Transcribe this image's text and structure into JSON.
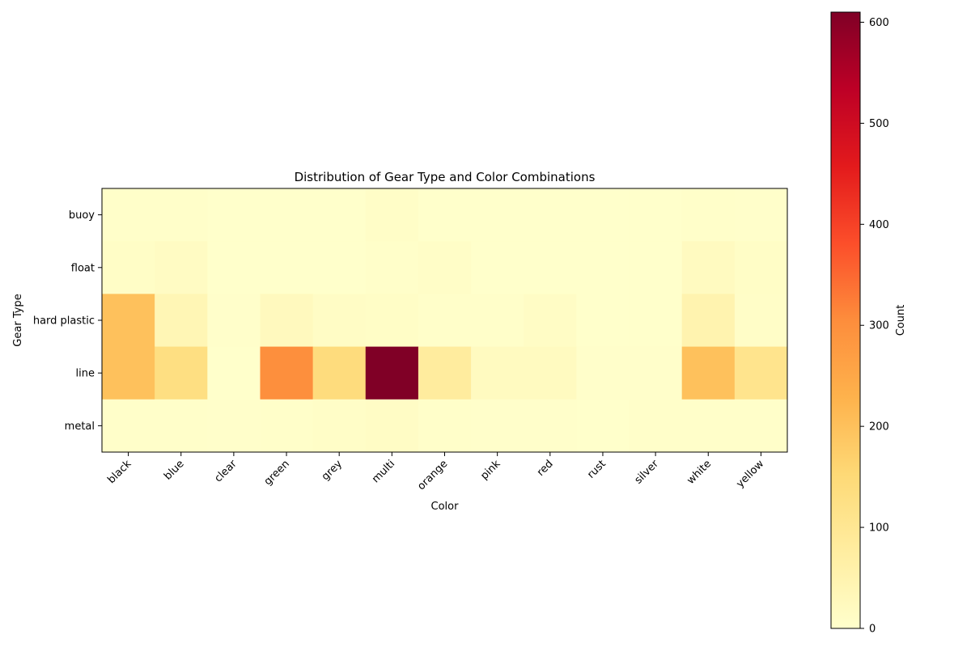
{
  "chart_data": {
    "type": "heatmap",
    "title": "Distribution of Gear Type and Color Combinations",
    "xlabel": "Color",
    "ylabel": "Gear Type",
    "x_categories": [
      "black",
      "blue",
      "clear",
      "green",
      "grey",
      "multi",
      "orange",
      "pink",
      "red",
      "rust",
      "silver",
      "white",
      "yellow"
    ],
    "y_categories": [
      "buoy",
      "float",
      "hard plastic",
      "line",
      "metal"
    ],
    "values": [
      [
        6,
        5,
        2,
        2,
        2,
        8,
        2,
        1,
        1,
        1,
        2,
        5,
        3
      ],
      [
        10,
        15,
        2,
        2,
        2,
        5,
        8,
        1,
        1,
        1,
        1,
        20,
        10
      ],
      [
        200,
        40,
        3,
        25,
        12,
        10,
        5,
        5,
        12,
        2,
        2,
        50,
        8
      ],
      [
        200,
        130,
        2,
        300,
        140,
        610,
        80,
        20,
        20,
        3,
        3,
        200,
        110
      ],
      [
        5,
        5,
        4,
        5,
        8,
        12,
        5,
        4,
        3,
        2,
        6,
        5,
        5
      ]
    ],
    "colorbar": {
      "label": "Count",
      "min": 0,
      "max": 610,
      "ticks": [
        0,
        100,
        200,
        300,
        400,
        500,
        600
      ],
      "colormap": "YlOrRd"
    },
    "grid": false,
    "legend": "colorbar-right"
  }
}
